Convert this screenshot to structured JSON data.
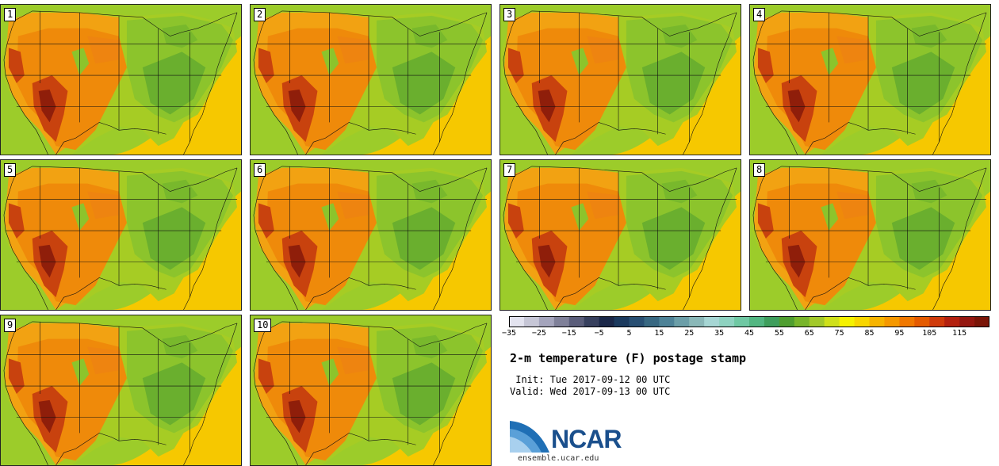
{
  "title": "2-m temperature (F) postage stamp",
  "init_line": " Init: Tue 2017-09-12 00 UTC",
  "valid_line": "Valid: Wed 2017-09-13 00 UTC",
  "logo_text": "NCAR",
  "logo_url": "ensemble.ucar.edu",
  "members": [
    "1",
    "2",
    "3",
    "4",
    "5",
    "6",
    "7",
    "8",
    "9",
    "10"
  ],
  "colorbar": {
    "min": -35,
    "max": 125,
    "step": 5,
    "tick_labels": [
      "-35",
      "-25",
      "-15",
      "-5",
      "5",
      "15",
      "25",
      "35",
      "45",
      "55",
      "65",
      "75",
      "85",
      "95",
      "105",
      "115"
    ],
    "colors": [
      "#e3e3ef",
      "#c6c6d6",
      "#a4a4bc",
      "#7f8099",
      "#5a5d7a",
      "#37405e",
      "#1a2748",
      "#1b3a5e",
      "#284f73",
      "#386882",
      "#4d8297",
      "#6b9ea8",
      "#8ab8b8",
      "#a6d6d4",
      "#8ed2c0",
      "#6fc8a3",
      "#52b681",
      "#3e9e5c",
      "#4f9e2f",
      "#78b52a",
      "#a2c92a",
      "#cfe01a",
      "#f5f200",
      "#f8d600",
      "#f6b400",
      "#f59800",
      "#f07800",
      "#e45a00",
      "#cf3a0a",
      "#b3200f",
      "#951710",
      "#7a1508"
    ]
  },
  "accent_colors": {
    "ocean": "#f6c800",
    "hot": "#b53a12",
    "mid": "#e88a10",
    "cool": "#5ea22c",
    "logo_blue": "#1a4f8c"
  }
}
